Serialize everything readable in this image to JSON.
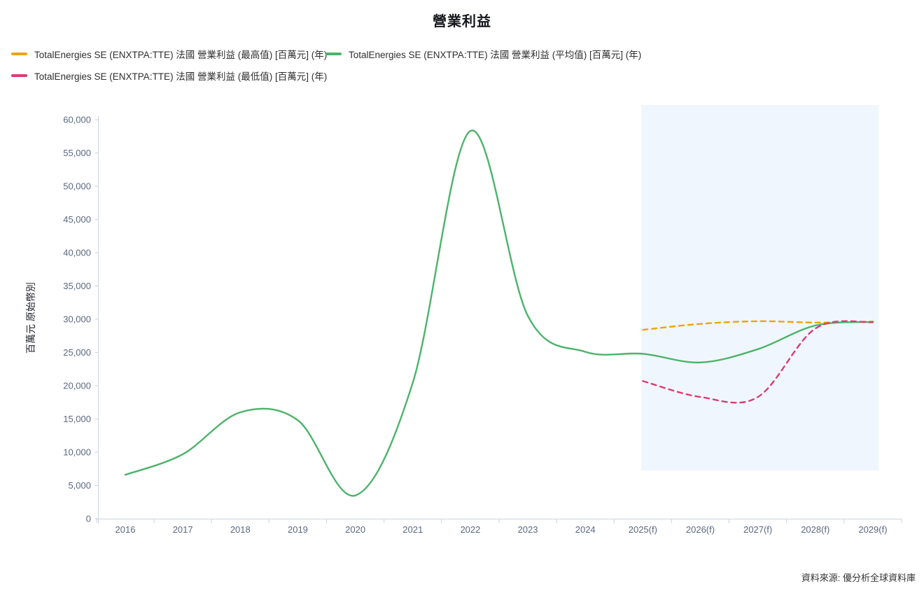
{
  "chart_data": {
    "type": "line",
    "title": "營業利益",
    "ylabel": "百萬元 原始幣別",
    "source": "資料來源: 優分析全球資料庫",
    "categories": [
      "2016",
      "2017",
      "2018",
      "2019",
      "2020",
      "2021",
      "2022",
      "2023",
      "2024",
      "2025(f)",
      "2026(f)",
      "2027(f)",
      "2028(f)",
      "2029(f)"
    ],
    "ylim": [
      0,
      60000
    ],
    "y_tick_step": 5000,
    "y_tick_labels": [
      "0",
      "5,000",
      "10,000",
      "15,000",
      "20,000",
      "25,000",
      "30,000",
      "35,000",
      "40,000",
      "45,000",
      "50,000",
      "55,000",
      "60,000"
    ],
    "grid": false,
    "legend_position": "top-left",
    "forecast_band": {
      "color": "#f0f6fd",
      "start_category": "2025(f)",
      "end_category": "2029(f)"
    },
    "axis_color": "#ccd2dd",
    "axis_label_color": "#5b6880",
    "series": [
      {
        "name": "TotalEnergies SE (ENXTPA:TTE) 法國 營業利益 (最高值) [百萬元] (年)",
        "color": "#F0A30A",
        "dashed": true,
        "start_index": 9,
        "values": [
          28400,
          29300,
          29700,
          29500,
          29650
        ]
      },
      {
        "name": "TotalEnergies SE (ENXTPA:TTE) 法國 營業利益 (平均值) [百萬元] (年)",
        "color": "#4CB36B",
        "dashed": false,
        "start_index": 0,
        "values": [
          6600,
          9700,
          16000,
          14800,
          3500,
          20500,
          58300,
          30500,
          25100,
          24800,
          23500,
          25500,
          29050,
          29600
        ]
      },
      {
        "name": "TotalEnergies SE (ENXTPA:TTE) 法國 營業利益 (最低值) [百萬元] (年)",
        "color": "#DD3B74",
        "dashed": true,
        "start_index": 9,
        "values": [
          20700,
          18300,
          18300,
          28600,
          29550
        ]
      }
    ]
  }
}
